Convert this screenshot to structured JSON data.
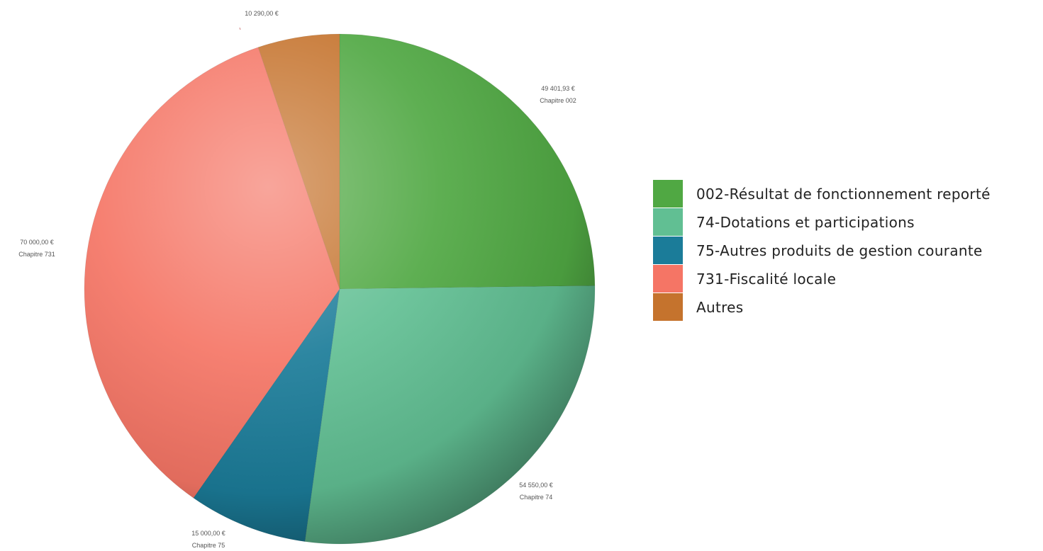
{
  "chart_data": {
    "type": "pie",
    "title": "",
    "slices": [
      {
        "label": "002-Résultat de fonctionnement reporté",
        "value": 49401.93,
        "value_text": "49 401,93 €",
        "sub_label": "Chapitre 002",
        "color": "#50A843"
      },
      {
        "label": "74-Dotations et participations",
        "value": 54550.0,
        "value_text": "54 550,00 €",
        "sub_label": "Chapitre 74",
        "color": "#61BF93"
      },
      {
        "label": "75-Autres produits de gestion courante",
        "value": 15000.0,
        "value_text": "15 000,00 €",
        "sub_label": "Chapitre 75",
        "color": "#1B7C99"
      },
      {
        "label": "731-Fiscalité locale",
        "value": 70000.0,
        "value_text": "70 000,00 €",
        "sub_label": "Chapitre 731",
        "color": "#F57565"
      },
      {
        "label": "Autres",
        "value": 10290.0,
        "value_text": "10 290,00 €",
        "sub_label": "",
        "color": "#C5732D"
      }
    ],
    "legend_position": "right",
    "start_angle_deg": 0,
    "direction": "clockwise"
  }
}
